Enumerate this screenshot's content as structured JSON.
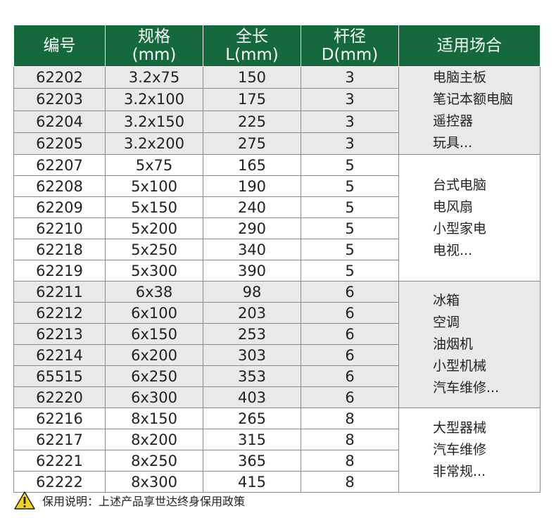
{
  "headers": [
    {
      "line1": "编号",
      "line2": ""
    },
    {
      "line1": "规格",
      "line2": "(mm)"
    },
    {
      "line1": "全长",
      "line2": "L(mm)"
    },
    {
      "line1": "杆径",
      "line2": "D(mm)"
    },
    {
      "line1": "适用场合",
      "line2": ""
    }
  ],
  "colors": {
    "header_bg": "#146a3c",
    "header_text": "#ffffff",
    "shaded_row": "#e9e9e9",
    "warning_yellow": "#f4d21f"
  },
  "groups": [
    {
      "shaded": true,
      "rows": [
        {
          "code": "62202",
          "spec": "3.2x75",
          "length": "150",
          "diameter": "3"
        },
        {
          "code": "62203",
          "spec": "3.2x100",
          "length": "175",
          "diameter": "3"
        },
        {
          "code": "62204",
          "spec": "3.2x150",
          "length": "225",
          "diameter": "3"
        },
        {
          "code": "62205",
          "spec": "3.2x200",
          "length": "275",
          "diameter": "3"
        }
      ],
      "uses": [
        "电脑主板",
        "笔记本额电脑",
        "遥控器",
        "玩具..."
      ]
    },
    {
      "shaded": false,
      "rows": [
        {
          "code": "62207",
          "spec": "5x75",
          "length": "165",
          "diameter": "5"
        },
        {
          "code": "62208",
          "spec": "5x100",
          "length": "190",
          "diameter": "5"
        },
        {
          "code": "62209",
          "spec": "5x150",
          "length": "240",
          "diameter": "5"
        },
        {
          "code": "62210",
          "spec": "5x200",
          "length": "290",
          "diameter": "5"
        },
        {
          "code": "62218",
          "spec": "5x250",
          "length": "340",
          "diameter": "5"
        },
        {
          "code": "62219",
          "spec": "5x300",
          "length": "390",
          "diameter": "5"
        }
      ],
      "uses": [
        "台式电脑",
        "电风扇",
        "小型家电",
        "电视..."
      ]
    },
    {
      "shaded": true,
      "rows": [
        {
          "code": "62211",
          "spec": "6x38",
          "length": "98",
          "diameter": "6"
        },
        {
          "code": "62212",
          "spec": "6x100",
          "length": "203",
          "diameter": "6"
        },
        {
          "code": "62213",
          "spec": "6x150",
          "length": "253",
          "diameter": "6"
        },
        {
          "code": "62214",
          "spec": "6x200",
          "length": "303",
          "diameter": "6"
        },
        {
          "code": "65515",
          "spec": "6x250",
          "length": "353",
          "diameter": "6"
        },
        {
          "code": "62220",
          "spec": "6x300",
          "length": "403",
          "diameter": "6"
        }
      ],
      "uses": [
        "冰箱",
        "空调",
        "油烟机",
        "小型机械",
        "汽车维修..."
      ]
    },
    {
      "shaded": false,
      "rows": [
        {
          "code": "62216",
          "spec": "8x150",
          "length": "265",
          "diameter": "8"
        },
        {
          "code": "62217",
          "spec": "8x200",
          "length": "315",
          "diameter": "8"
        },
        {
          "code": "62221",
          "spec": "8x250",
          "length": "365",
          "diameter": "8"
        },
        {
          "code": "62222",
          "spec": "8x300",
          "length": "415",
          "diameter": "8"
        }
      ],
      "uses": [
        "大型器械",
        "汽车维修",
        "非常规..."
      ]
    }
  ],
  "warranty": {
    "icon": "warning-triangle-icon",
    "text": "保用说明：上述产品享世达终身保用政策"
  }
}
